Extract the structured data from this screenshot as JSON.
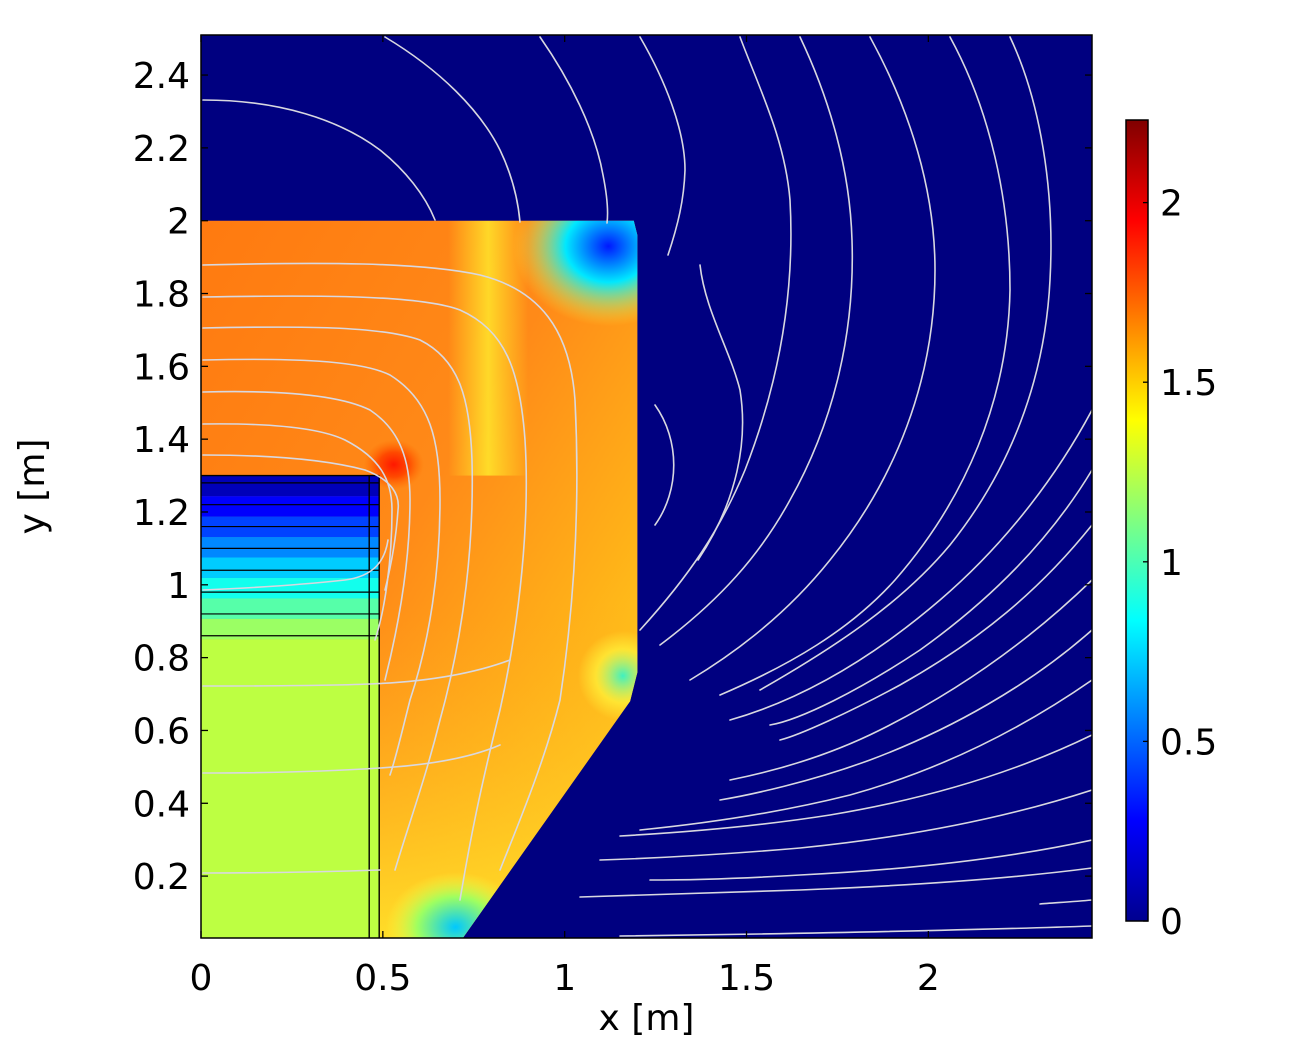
{
  "chart_data": {
    "type": "heatmap",
    "title": "",
    "xlabel": "x [m]",
    "ylabel": "y [m]",
    "xlim": [
      0,
      2.45
    ],
    "ylim": [
      0.03,
      2.51
    ],
    "x_ticks": [
      "0",
      "0.5",
      "1",
      "1.5",
      "2"
    ],
    "x_tick_values": [
      0,
      0.5,
      1,
      1.5,
      2
    ],
    "y_ticks": [
      "0.2",
      "0.4",
      "0.6",
      "0.8",
      "1",
      "1.2",
      "1.4",
      "1.6",
      "1.8",
      "2",
      "2.2",
      "2.4"
    ],
    "y_tick_values": [
      0.2,
      0.4,
      0.6,
      0.8,
      1,
      1.2,
      1.4,
      1.6,
      1.8,
      2,
      2.2,
      2.4
    ],
    "colorbar": {
      "colormap": "jet",
      "range": [
        0,
        2.23
      ],
      "ticks": [
        "0",
        "0.5",
        "1",
        "1.5",
        "2"
      ],
      "tick_values": [
        0,
        0.5,
        1,
        1.5,
        2
      ]
    },
    "grid": false,
    "legend": "none",
    "background_value": 0,
    "regions": [
      {
        "name": "core",
        "polygon": [
          [
            0,
            2.0
          ],
          [
            1.19,
            2.0
          ],
          [
            1.2,
            1.96
          ],
          [
            1.2,
            0.76
          ],
          [
            1.18,
            0.68
          ],
          [
            0.72,
            0.03
          ],
          [
            0,
            0.03
          ]
        ],
        "typical_value": 1.7
      },
      {
        "name": "coil",
        "polygon": [
          [
            0,
            1.3
          ],
          [
            0.49,
            1.3
          ],
          [
            0.49,
            0.03
          ],
          [
            0,
            0.03
          ]
        ],
        "value_bottom": 1.25,
        "value_top": 0.05
      }
    ],
    "hot_spots": [
      {
        "x": 1.12,
        "y": 1.93,
        "value": 0.3
      },
      {
        "x": 0.7,
        "y": 0.06,
        "value": 0.9
      },
      {
        "x": 1.16,
        "y": 0.75,
        "value": 1.15
      },
      {
        "x": 0.53,
        "y": 1.33,
        "value": 2.0
      }
    ]
  }
}
